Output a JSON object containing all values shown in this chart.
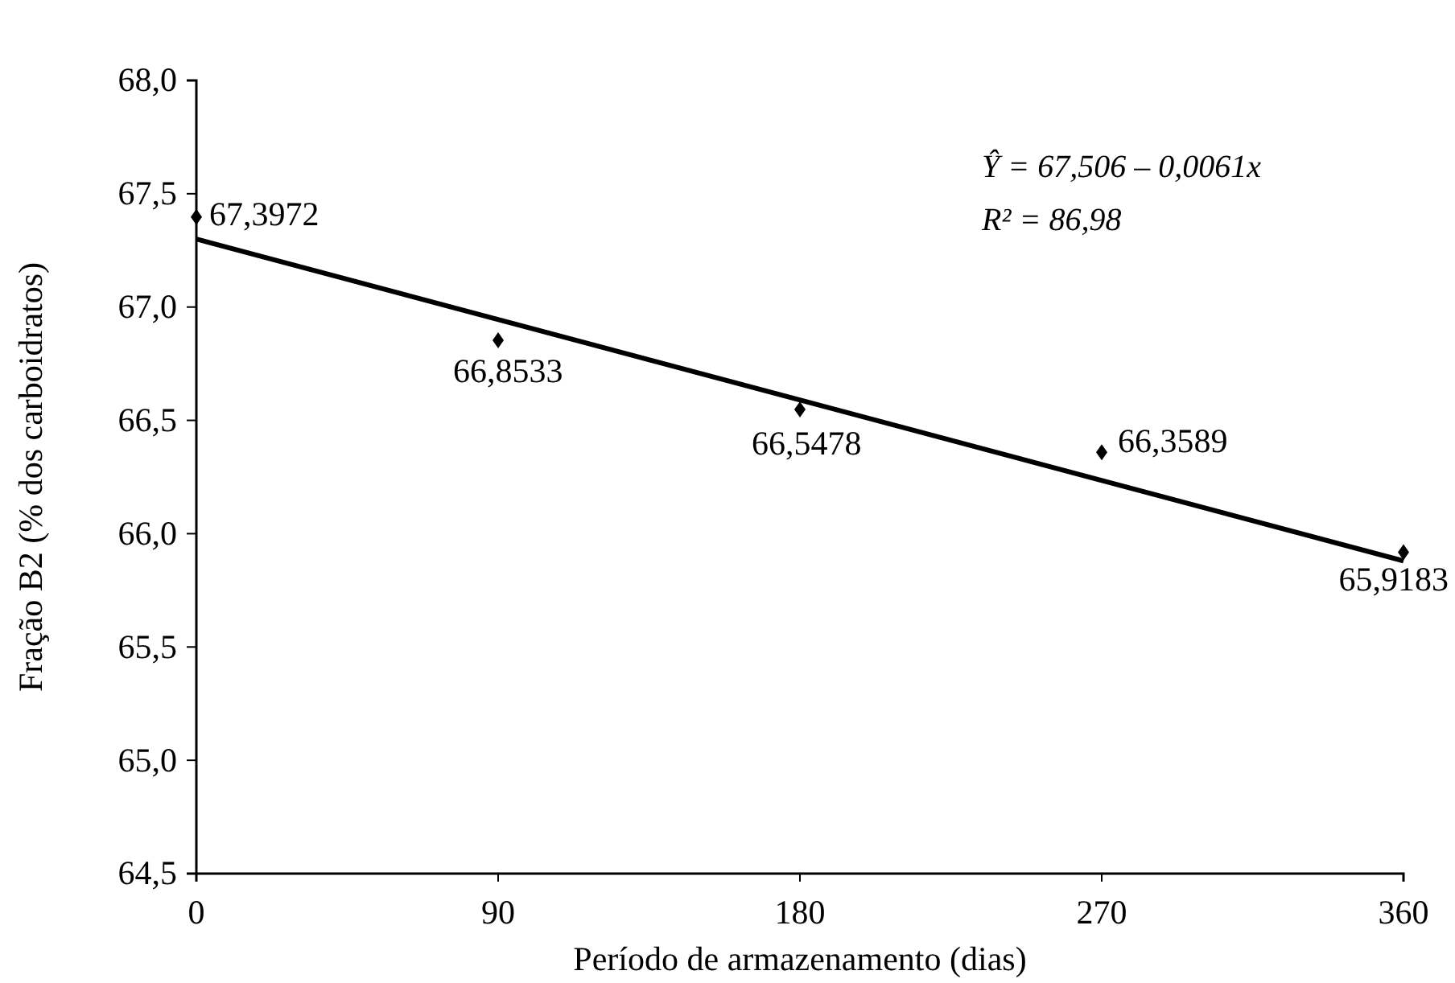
{
  "chart_data": {
    "type": "scatter",
    "xlabel": "Período de armazenamento (dias)",
    "ylabel": "Fração B2 (% dos carboidratos)",
    "x": [
      0,
      90,
      180,
      270,
      360
    ],
    "series": [
      {
        "type": "scatter",
        "color": "#000000",
        "marker": "diamond",
        "values": [
          67.3972,
          66.8533,
          66.5478,
          66.3589,
          65.9183
        ],
        "value_labels": [
          "67,3972",
          "66,8533",
          "66,5478",
          "66,3589",
          "65,9183"
        ]
      },
      {
        "type": "line",
        "color": "#000000",
        "marker": "none",
        "line_style": "solid",
        "x": [
          0,
          360
        ],
        "values": [
          67.3,
          65.88
        ]
      }
    ],
    "xlim": [
      0,
      360
    ],
    "xticks": [
      0,
      90,
      180,
      270,
      360
    ],
    "ylim": [
      64.5,
      68.0
    ],
    "yticks": [
      {
        "value": 64.5,
        "label": "64,5"
      },
      {
        "value": 65.0,
        "label": "65,0"
      },
      {
        "value": 65.5,
        "label": "65,5"
      },
      {
        "value": 66.0,
        "label": "66,0"
      },
      {
        "value": 66.5,
        "label": "66,5"
      },
      {
        "value": 67.0,
        "label": "67,0"
      },
      {
        "value": 67.5,
        "label": "67,5"
      },
      {
        "value": 68.0,
        "label": "68,0"
      }
    ],
    "grid": false,
    "annotations": [
      "Ŷ = 67,506 – 0,0061x",
      "R² = 86,98"
    ]
  }
}
